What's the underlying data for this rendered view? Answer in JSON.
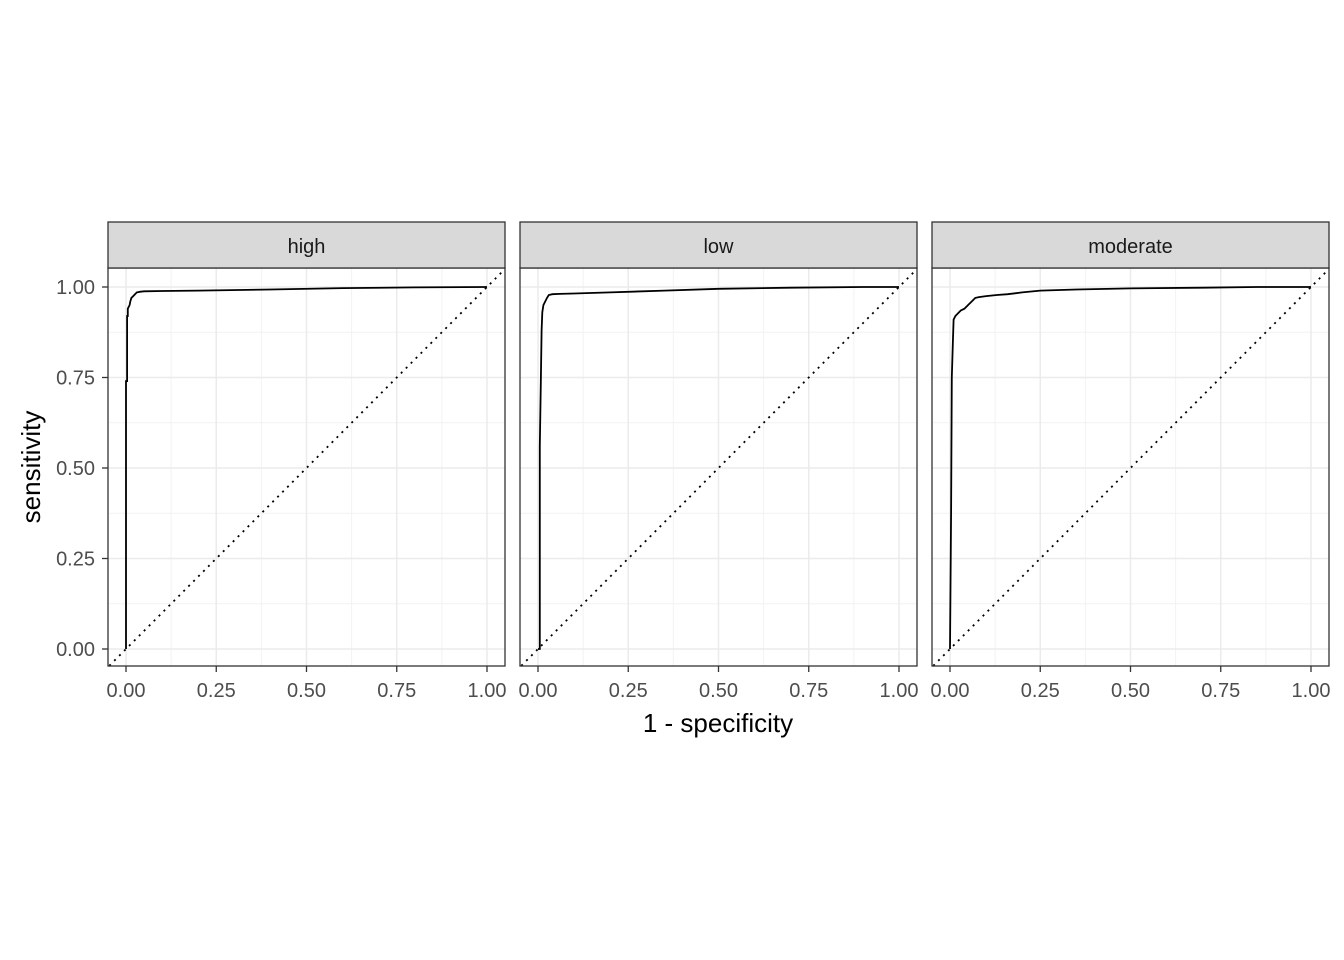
{
  "chart_data": {
    "type": "line",
    "xlabel": "1 - specificity",
    "ylabel": "sensitivity",
    "xlim": [
      0,
      1
    ],
    "ylim": [
      0,
      1
    ],
    "x_ticks": [
      "0.00",
      "0.25",
      "0.50",
      "0.75",
      "1.00"
    ],
    "y_ticks": [
      "0.00",
      "0.25",
      "0.50",
      "0.75",
      "1.00"
    ],
    "grid": true,
    "reference_line": {
      "style": "dotted",
      "from": [
        0,
        0
      ],
      "to": [
        1,
        1
      ]
    },
    "panels": [
      {
        "strip": "high",
        "x": [
          0,
          0,
          0.003,
          0.003,
          0.005,
          0.005,
          0.01,
          0.012,
          0.015,
          0.02,
          0.025,
          0.03,
          0.04,
          0.05,
          0.1,
          0.2,
          0.4,
          0.6,
          0.8,
          1.0
        ],
        "y": [
          0,
          0.74,
          0.74,
          0.92,
          0.92,
          0.94,
          0.95,
          0.96,
          0.97,
          0.975,
          0.98,
          0.985,
          0.987,
          0.988,
          0.989,
          0.99,
          0.993,
          0.997,
          0.999,
          1.0
        ]
      },
      {
        "strip": "low",
        "x": [
          0,
          0.005,
          0.005,
          0.008,
          0.01,
          0.012,
          0.015,
          0.02,
          0.025,
          0.03,
          0.04,
          0.06,
          0.1,
          0.2,
          0.35,
          0.5,
          0.7,
          0.9,
          1.0
        ],
        "y": [
          0,
          0.0,
          0.56,
          0.75,
          0.88,
          0.93,
          0.95,
          0.96,
          0.97,
          0.978,
          0.98,
          0.981,
          0.982,
          0.985,
          0.99,
          0.995,
          0.998,
          1.0,
          1.0
        ]
      },
      {
        "strip": "moderate",
        "x": [
          0,
          0.0,
          0.003,
          0.005,
          0.008,
          0.01,
          0.015,
          0.02,
          0.03,
          0.04,
          0.05,
          0.06,
          0.07,
          0.08,
          0.1,
          0.13,
          0.16,
          0.2,
          0.25,
          0.35,
          0.5,
          0.7,
          0.85,
          1.0
        ],
        "y": [
          0,
          0.0,
          0.38,
          0.75,
          0.85,
          0.91,
          0.92,
          0.925,
          0.935,
          0.94,
          0.95,
          0.96,
          0.97,
          0.972,
          0.975,
          0.978,
          0.98,
          0.985,
          0.99,
          0.993,
          0.996,
          0.998,
          1.0,
          1.0
        ]
      }
    ]
  }
}
